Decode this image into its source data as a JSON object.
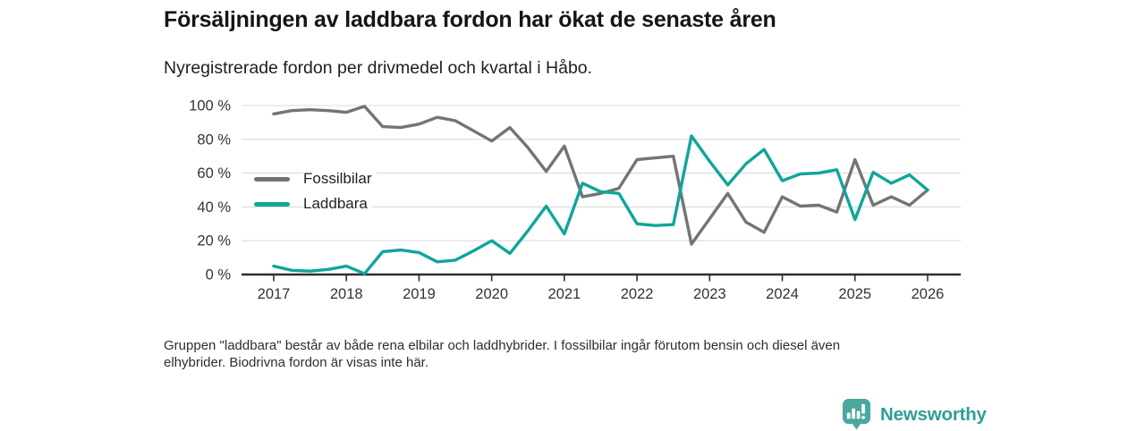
{
  "chart_data": {
    "type": "line",
    "title": "Försäljningen av laddbara fordon har ökat de senaste åren",
    "subtitle": "Nyregistrerade fordon per drivmedel och kvartal i Håbo.",
    "x_unit": "quarter",
    "x_start": "2017-Q1",
    "x_end": "2026-Q1",
    "x_tick_labels": [
      "2017",
      "2018",
      "2019",
      "2020",
      "2021",
      "2022",
      "2023",
      "2024",
      "2025",
      "2026"
    ],
    "y_ticks": [
      0,
      20,
      40,
      60,
      80,
      100
    ],
    "y_tick_labels": [
      "0 %",
      "20 %",
      "40 %",
      "60 %",
      "80 %",
      "100 %"
    ],
    "ylim": [
      0,
      100
    ],
    "grid": "horizontal",
    "legend_position": "inside-left",
    "series": [
      {
        "name": "Fossilbilar",
        "color": "#747474",
        "values": [
          95,
          97,
          97.5,
          97,
          96,
          99.5,
          87.5,
          87,
          89,
          93,
          91,
          85,
          79,
          87,
          75,
          61,
          76,
          46,
          48,
          51,
          68,
          69,
          70,
          18,
          33,
          48,
          31,
          25,
          46,
          40.5,
          41,
          37,
          68,
          41,
          46,
          41,
          50
        ]
      },
      {
        "name": "Laddbara",
        "color": "#10a59a",
        "values": [
          5,
          2.5,
          2,
          3,
          5,
          0.5,
          13.5,
          14.5,
          13,
          7.5,
          8.5,
          14,
          20,
          12.5,
          26,
          40.5,
          24,
          54,
          49,
          48,
          30,
          29,
          29.5,
          82,
          67,
          53,
          65.5,
          74,
          55.5,
          59.5,
          60,
          62,
          32.5,
          60.5,
          54,
          59,
          50
        ]
      }
    ]
  },
  "footnote": {
    "line1": "Gruppen \"laddbara\" består av både rena elbilar och laddhybrider. I fossilbilar ingår förutom bensin och diesel även",
    "line2": "elhybrider. Biodrivna fordon är visas inte här."
  },
  "logo": {
    "text": "Newsworthy",
    "icon": "newsworthy-badge-icon",
    "badge_color": "#4ba89f",
    "text_color": "#2f9e97"
  }
}
